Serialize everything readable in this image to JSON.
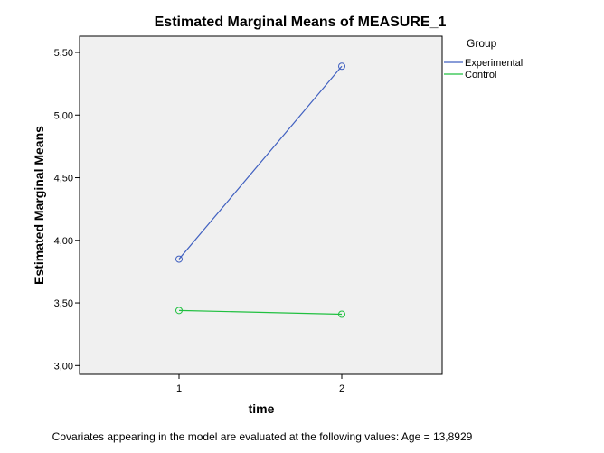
{
  "chart_data": {
    "type": "line",
    "title": "Estimated Marginal Means of MEASURE_1",
    "xlabel": "time",
    "ylabel": "Estimated Marginal Means",
    "categories": [
      "1",
      "2"
    ],
    "ylim": [
      2.93,
      5.63
    ],
    "yticks": [
      3.0,
      3.5,
      4.0,
      4.5,
      5.0,
      5.5
    ],
    "ytick_labels": [
      "3,00",
      "3,50",
      "4,00",
      "4,50",
      "5,00",
      "5,50"
    ],
    "legend_title": "Group",
    "legend_position": "right",
    "grid": false,
    "series": [
      {
        "name": "Experimental",
        "values": [
          3.85,
          5.39
        ],
        "color": "#4060c0"
      },
      {
        "name": "Control",
        "values": [
          3.44,
          3.41
        ],
        "color": "#20c040"
      }
    ],
    "plot_background": "#f0f0f0",
    "footnote": "Covariates appearing in the model are evaluated at the following values: Age = 13,8929"
  }
}
